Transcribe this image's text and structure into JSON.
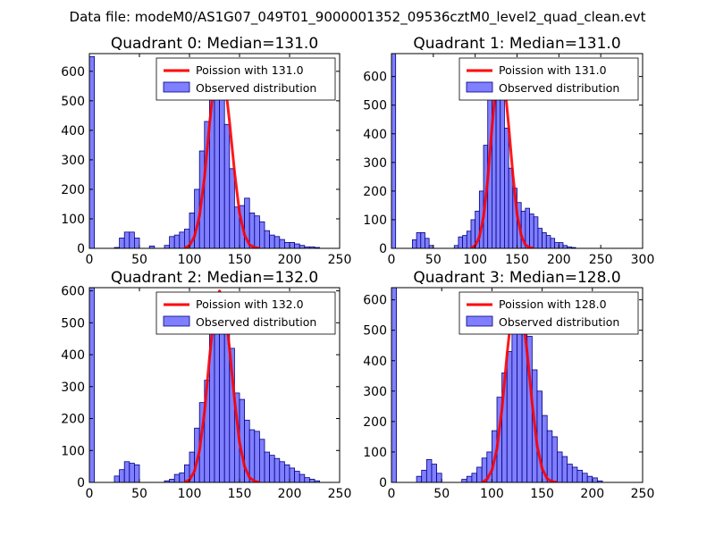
{
  "figure_title": "Data file: modeM0/AS1G07_049T01_9000001352_09536cztM0_level2_quad_clean.evt",
  "colors": {
    "poisson_line": "#ff0000",
    "hist_fill": "#7f7fff",
    "hist_edge": "#000080",
    "frame": "#000000"
  },
  "chart_data": [
    {
      "type": "bar",
      "title": "Quadrant 0: Median=131.0",
      "median": 131.0,
      "xlim": [
        0,
        250
      ],
      "ylim": [
        0,
        660
      ],
      "xticks": [
        0,
        50,
        100,
        150,
        200,
        250
      ],
      "yticks": [
        0,
        100,
        200,
        300,
        400,
        500,
        600
      ],
      "bin_width": 5,
      "legend": [
        "Poission with 131.0",
        "Observed distribution"
      ],
      "histogram": {
        "bins_start": [
          0,
          25,
          30,
          35,
          40,
          45,
          60,
          75,
          80,
          85,
          90,
          95,
          100,
          105,
          110,
          115,
          120,
          125,
          130,
          135,
          140,
          145,
          150,
          155,
          160,
          165,
          170,
          175,
          180,
          185,
          190,
          195,
          200,
          205,
          210,
          215,
          220,
          225
        ],
        "counts": [
          650,
          3,
          35,
          55,
          55,
          35,
          8,
          10,
          40,
          45,
          55,
          65,
          120,
          200,
          330,
          430,
          590,
          600,
          535,
          420,
          270,
          140,
          145,
          170,
          120,
          110,
          90,
          60,
          45,
          40,
          30,
          20,
          20,
          15,
          10,
          5,
          5,
          3
        ]
      },
      "poisson": {
        "x": [
          95,
          100,
          105,
          110,
          115,
          120,
          125,
          130,
          135,
          140,
          145,
          150,
          155,
          160,
          165,
          170
        ],
        "y": [
          0,
          10,
          40,
          110,
          240,
          420,
          580,
          640,
          580,
          430,
          260,
          120,
          45,
          12,
          3,
          0
        ]
      }
    },
    {
      "type": "bar",
      "title": "Quadrant 1: Median=131.0",
      "median": 131.0,
      "xlim": [
        0,
        300
      ],
      "ylim": [
        0,
        680
      ],
      "xticks": [
        0,
        50,
        100,
        150,
        200,
        250,
        300
      ],
      "yticks": [
        0,
        100,
        200,
        300,
        400,
        500,
        600
      ],
      "bin_width": 5,
      "legend": [
        "Poission with 131.0",
        "Observed distribution"
      ],
      "histogram": {
        "bins_start": [
          0,
          25,
          30,
          35,
          40,
          45,
          75,
          80,
          85,
          90,
          95,
          100,
          105,
          110,
          115,
          120,
          125,
          130,
          135,
          140,
          145,
          150,
          155,
          160,
          165,
          170,
          175,
          180,
          185,
          190,
          195,
          200,
          205,
          210,
          215
        ],
        "counts": [
          680,
          30,
          55,
          55,
          35,
          10,
          10,
          40,
          45,
          60,
          100,
          130,
          200,
          360,
          530,
          560,
          600,
          540,
          420,
          280,
          210,
          160,
          130,
          140,
          120,
          110,
          70,
          55,
          45,
          35,
          20,
          20,
          10,
          5,
          3
        ]
      },
      "poisson": {
        "x": [
          95,
          100,
          105,
          110,
          115,
          120,
          125,
          130,
          135,
          140,
          145,
          150,
          155,
          160,
          165,
          170
        ],
        "y": [
          0,
          10,
          40,
          110,
          240,
          420,
          580,
          650,
          580,
          430,
          260,
          120,
          45,
          12,
          3,
          0
        ]
      }
    },
    {
      "type": "bar",
      "title": "Quadrant 2: Median=132.0",
      "median": 132.0,
      "xlim": [
        0,
        250
      ],
      "ylim": [
        0,
        610
      ],
      "xticks": [
        0,
        50,
        100,
        150,
        200,
        250
      ],
      "yticks": [
        0,
        100,
        200,
        300,
        400,
        500,
        600
      ],
      "bin_width": 5,
      "legend": [
        "Poission with 132.0",
        "Observed distribution"
      ],
      "histogram": {
        "bins_start": [
          0,
          25,
          30,
          35,
          40,
          45,
          75,
          80,
          85,
          90,
          95,
          100,
          105,
          110,
          115,
          120,
          125,
          130,
          135,
          140,
          145,
          150,
          155,
          160,
          165,
          170,
          175,
          180,
          185,
          190,
          195,
          200,
          205,
          210,
          215,
          220,
          225
        ],
        "counts": [
          610,
          20,
          40,
          65,
          60,
          55,
          5,
          10,
          25,
          30,
          55,
          95,
          170,
          250,
          320,
          470,
          480,
          540,
          480,
          420,
          280,
          260,
          195,
          165,
          160,
          135,
          95,
          85,
          75,
          65,
          55,
          45,
          35,
          25,
          15,
          10,
          5
        ]
      },
      "poisson": {
        "x": [
          95,
          100,
          105,
          110,
          115,
          120,
          125,
          130,
          135,
          140,
          145,
          150,
          155,
          160,
          165,
          170
        ],
        "y": [
          0,
          8,
          35,
          100,
          220,
          390,
          540,
          600,
          560,
          420,
          260,
          125,
          50,
          15,
          4,
          0
        ]
      }
    },
    {
      "type": "bar",
      "title": "Quadrant 3: Median=128.0",
      "median": 128.0,
      "xlim": [
        0,
        250
      ],
      "ylim": [
        0,
        640
      ],
      "xticks": [
        0,
        50,
        100,
        150,
        200,
        250
      ],
      "yticks": [
        0,
        100,
        200,
        300,
        400,
        500,
        600
      ],
      "bin_width": 5,
      "legend": [
        "Poission with 128.0",
        "Observed distribution"
      ],
      "histogram": {
        "bins_start": [
          0,
          25,
          30,
          35,
          40,
          45,
          70,
          75,
          80,
          85,
          90,
          95,
          100,
          105,
          110,
          115,
          120,
          125,
          130,
          135,
          140,
          145,
          150,
          155,
          160,
          165,
          170,
          175,
          180,
          185,
          190,
          195,
          200,
          205
        ],
        "counts": [
          640,
          20,
          40,
          75,
          60,
          30,
          10,
          20,
          30,
          50,
          80,
          100,
          170,
          280,
          360,
          430,
          570,
          600,
          610,
          480,
          370,
          300,
          220,
          170,
          150,
          100,
          85,
          60,
          50,
          40,
          30,
          20,
          15,
          5
        ]
      },
      "poisson": {
        "x": [
          90,
          95,
          100,
          105,
          110,
          115,
          120,
          125,
          130,
          135,
          140,
          145,
          150,
          155,
          160,
          165
        ],
        "y": [
          0,
          10,
          40,
          110,
          240,
          420,
          570,
          615,
          570,
          430,
          260,
          120,
          45,
          12,
          3,
          0
        ]
      }
    }
  ]
}
